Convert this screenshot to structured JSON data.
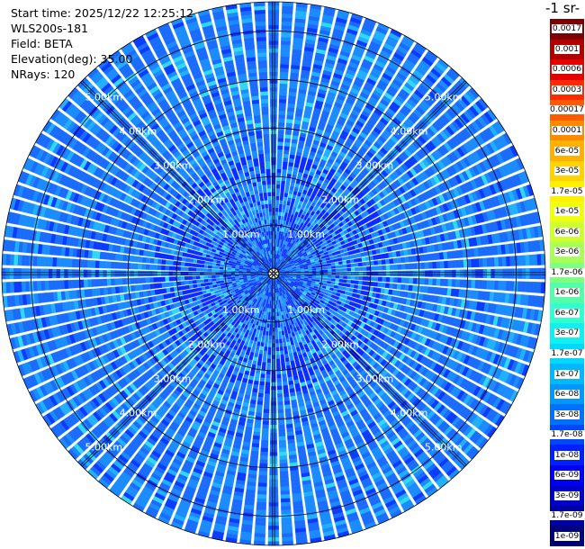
{
  "info": {
    "start_time": "Start time: 2025/12/22 12:25:12",
    "instrument": "WLS200s-181",
    "field": "Field: BETA",
    "elevation": "Elevation(deg): 35.00",
    "nrays": "NRays: 120"
  },
  "colorbar": {
    "title": "-1 sr-",
    "labels": [
      "0.0017",
      "0.001",
      "0.0006",
      "0.0003",
      "0.00017",
      "0.0001",
      "6e-05",
      "3e-05",
      "1.7e-05",
      "1e-05",
      "6e-06",
      "3e-06",
      "1.7e-06",
      "1e-06",
      "6e-07",
      "3e-07",
      "1.7e-07",
      "1e-07",
      "6e-08",
      "3e-08",
      "1.7e-08",
      "1e-08",
      "6e-09",
      "3e-09",
      "1.7e-09",
      "1e-09"
    ],
    "colors": [
      "#7f0000",
      "#b20000",
      "#e50000",
      "#ff2a00",
      "#ff5a00",
      "#ff8a00",
      "#ffb000",
      "#ffd200",
      "#fff000",
      "#f0ff10",
      "#d0ff30",
      "#a8ff58",
      "#80ff80",
      "#55ffa8",
      "#30ffd0",
      "#10f0f0",
      "#00d8ff",
      "#00b8ff",
      "#0098ff",
      "#0070ff",
      "#0048ff",
      "#0020ff",
      "#0000f0",
      "#0000c8",
      "#0000a0",
      "#000078"
    ]
  },
  "chart_data": {
    "type": "polar-ppi",
    "field": "BETA",
    "nrays": 120,
    "elevation_deg": 35.0,
    "range_rings_km": [
      1,
      2,
      3,
      4,
      5
    ],
    "ring_labels": [
      "1.00km",
      "2.00km",
      "3.00km",
      "4.00km",
      "5.00km"
    ],
    "max_range_km": 5.6,
    "grid_angles_deg": [
      0,
      45,
      90,
      135
    ],
    "dominant_value": "3e-08",
    "colorbar_min": "1e-09",
    "colorbar_max": "0.0017"
  }
}
